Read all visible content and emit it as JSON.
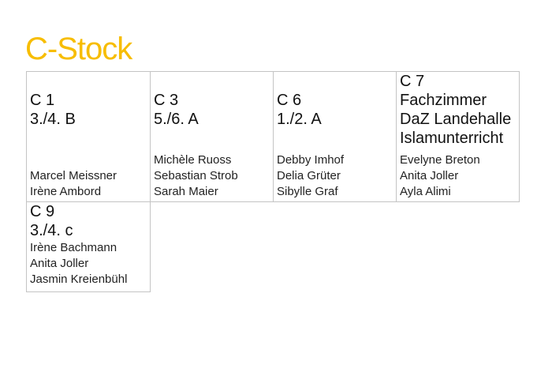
{
  "title": "C-Stock",
  "rooms": [
    {
      "room": "C 1",
      "lines": [
        "3./4. B"
      ],
      "names": [
        "Marcel Meissner",
        "Irène Ambord"
      ]
    },
    {
      "room": "C 3",
      "lines": [
        "5./6. A"
      ],
      "names": [
        "Michèle Ruoss",
        "Sebastian Strob",
        "Sarah Maier"
      ]
    },
    {
      "room": "C 6",
      "lines": [
        "1./2. A"
      ],
      "names": [
        "Debby Imhof",
        "Delia Grüter",
        "Sibylle Graf"
      ]
    },
    {
      "room": "C 7",
      "lines": [
        "Fachzimmer",
        "DaZ Landehalle",
        "Islamunterricht"
      ],
      "names": [
        "Evelyne Breton",
        "Anita Joller",
        "Ayla Alimi"
      ]
    },
    {
      "room": "C 9",
      "lines": [
        "3./4. c"
      ],
      "names": [
        "Irène Bachmann",
        "Anita Joller",
        "Jasmin Kreienbühl"
      ]
    }
  ]
}
